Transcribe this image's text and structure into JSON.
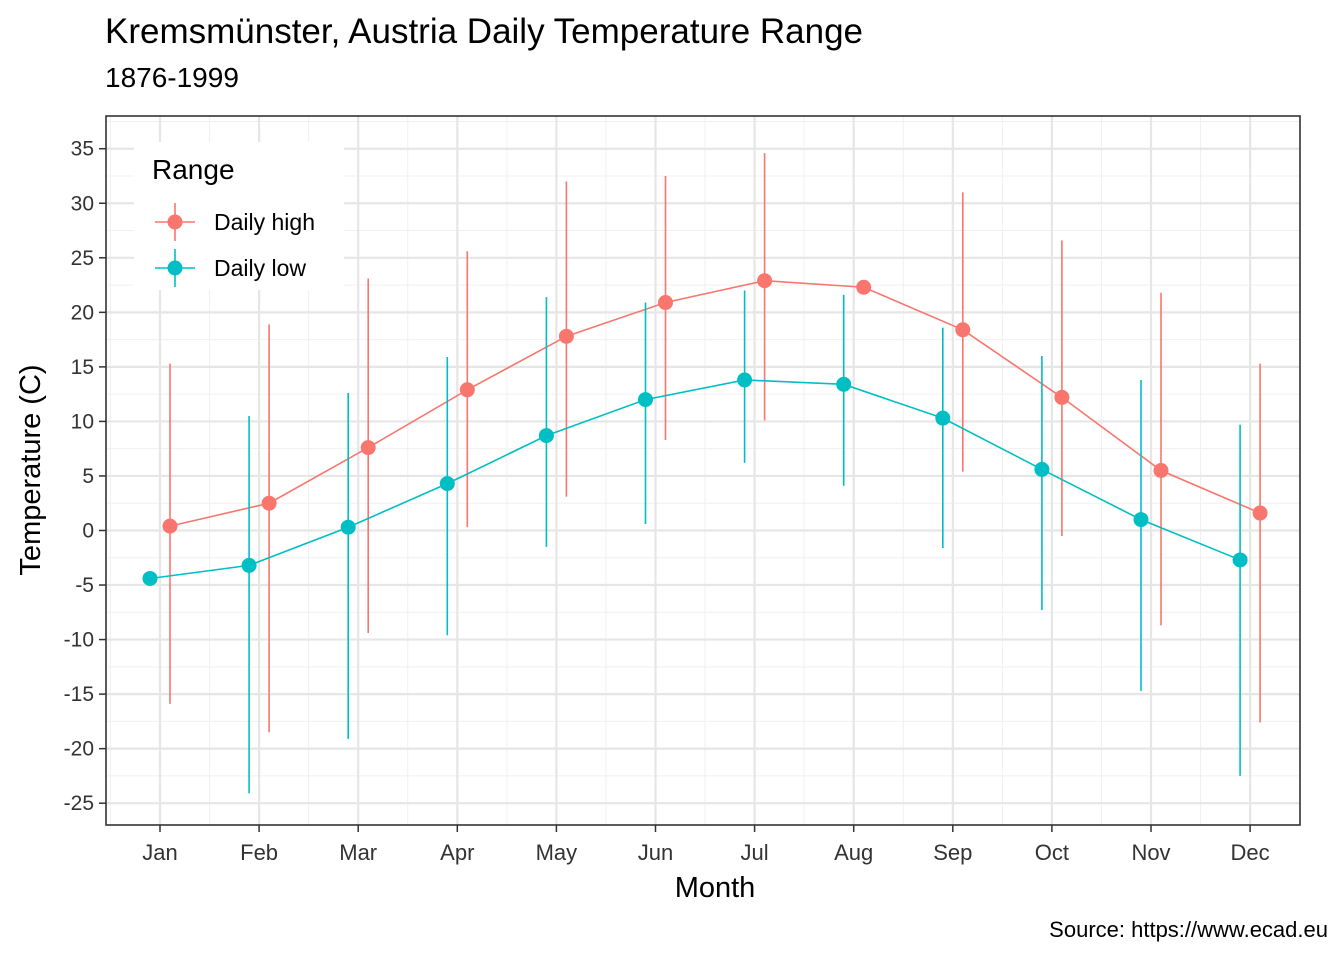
{
  "chart_data": {
    "type": "line",
    "title": "Kremsmünster, Austria Daily Temperature Range",
    "subtitle": "1876-1999",
    "caption": "Source: https://www.ecad.eu",
    "xlabel": "Month",
    "ylabel": "Temperature (C)",
    "categories": [
      "Jan",
      "Feb",
      "Mar",
      "Apr",
      "May",
      "Jun",
      "Jul",
      "Aug",
      "Sep",
      "Oct",
      "Nov",
      "Dec"
    ],
    "ylim": [
      -27,
      38
    ],
    "yticks": [
      -25,
      -20,
      -15,
      -10,
      -5,
      0,
      5,
      10,
      15,
      20,
      25,
      30,
      35
    ],
    "grid": true,
    "legend": {
      "title": "Range",
      "position": "top-left"
    },
    "series": [
      {
        "name": "Daily high",
        "color": "#F8766D",
        "values": [
          0.4,
          2.5,
          7.6,
          12.9,
          17.8,
          20.9,
          22.9,
          22.3,
          18.4,
          12.2,
          5.5,
          1.6
        ],
        "min": [
          -15.9,
          -18.5,
          -9.4,
          0.3,
          3.1,
          8.3,
          10.1,
          null,
          5.4,
          -0.5,
          -8.7,
          -17.6
        ],
        "max": [
          15.3,
          18.9,
          23.1,
          25.6,
          32.0,
          32.5,
          34.6,
          null,
          31.0,
          26.6,
          21.8,
          15.3
        ]
      },
      {
        "name": "Daily low",
        "color": "#00BFC4",
        "values": [
          -4.4,
          -3.2,
          0.3,
          4.3,
          8.7,
          12.0,
          13.8,
          13.4,
          10.3,
          5.6,
          1.0,
          -2.7
        ],
        "min": [
          null,
          -24.1,
          -19.1,
          -9.6,
          -1.5,
          0.6,
          6.2,
          4.1,
          -1.6,
          -7.3,
          -14.7,
          -22.5
        ],
        "max": [
          null,
          10.5,
          12.6,
          15.9,
          21.4,
          20.9,
          22.0,
          21.6,
          18.6,
          16.0,
          13.8,
          9.7
        ]
      }
    ]
  }
}
